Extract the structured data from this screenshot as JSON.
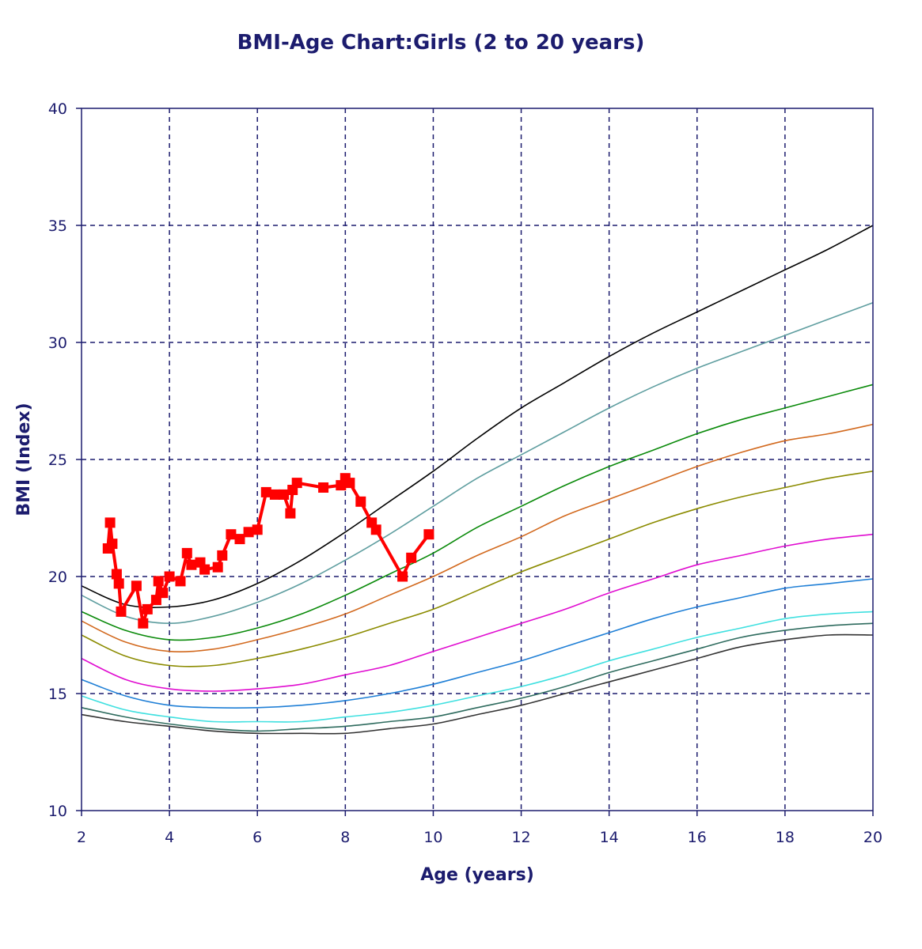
{
  "chart_data": {
    "type": "line",
    "title": "BMI-Age Chart:Girls (2 to 20 years)",
    "xlabel": "Age (years)",
    "ylabel": "BMI (Index)",
    "xlim": [
      2,
      20
    ],
    "ylim": [
      10,
      40
    ],
    "xticks": [
      "2",
      "4",
      "6",
      "8",
      "10",
      "12",
      "14",
      "16",
      "18",
      "20"
    ],
    "yticks": [
      "10",
      "15",
      "20",
      "25",
      "30",
      "35",
      "40"
    ],
    "grid": true,
    "x": [
      2,
      3,
      4,
      5,
      6,
      7,
      8,
      9,
      10,
      11,
      12,
      13,
      14,
      15,
      16,
      17,
      18,
      19,
      20
    ],
    "series": [
      {
        "color": "#000000",
        "values": [
          19.6,
          18.8,
          18.7,
          19.0,
          19.7,
          20.7,
          21.9,
          23.2,
          24.5,
          25.9,
          27.2,
          28.3,
          29.4,
          30.4,
          31.3,
          32.2,
          33.1,
          34.0,
          35.0
        ]
      },
      {
        "color": "#5f9ea0",
        "values": [
          19.2,
          18.3,
          18.0,
          18.3,
          18.9,
          19.7,
          20.7,
          21.8,
          23.0,
          24.2,
          25.2,
          26.2,
          27.2,
          28.1,
          28.9,
          29.6,
          30.3,
          31.0,
          31.7
        ]
      },
      {
        "color": "#0a8a0a",
        "values": [
          18.5,
          17.7,
          17.3,
          17.4,
          17.8,
          18.4,
          19.2,
          20.1,
          21.0,
          22.1,
          23.0,
          23.9,
          24.7,
          25.4,
          26.1,
          26.7,
          27.2,
          27.7,
          28.2
        ]
      },
      {
        "color": "#d2691e",
        "values": [
          18.1,
          17.2,
          16.8,
          16.9,
          17.3,
          17.8,
          18.4,
          19.2,
          20.0,
          20.9,
          21.7,
          22.6,
          23.3,
          24.0,
          24.7,
          25.3,
          25.8,
          26.1,
          26.5
        ]
      },
      {
        "color": "#8b8b00",
        "values": [
          17.5,
          16.6,
          16.2,
          16.2,
          16.5,
          16.9,
          17.4,
          18.0,
          18.6,
          19.4,
          20.2,
          20.9,
          21.6,
          22.3,
          22.9,
          23.4,
          23.8,
          24.2,
          24.5
        ]
      },
      {
        "color": "#e00cd0",
        "values": [
          16.5,
          15.6,
          15.2,
          15.1,
          15.2,
          15.4,
          15.8,
          16.2,
          16.8,
          17.4,
          18.0,
          18.6,
          19.3,
          19.9,
          20.5,
          20.9,
          21.3,
          21.6,
          21.8
        ]
      },
      {
        "color": "#1f7fd6",
        "values": [
          15.6,
          14.9,
          14.5,
          14.4,
          14.4,
          14.5,
          14.7,
          15.0,
          15.4,
          15.9,
          16.4,
          17.0,
          17.6,
          18.2,
          18.7,
          19.1,
          19.5,
          19.7,
          19.9
        ]
      },
      {
        "color": "#40e0e0",
        "values": [
          14.9,
          14.3,
          14.0,
          13.8,
          13.8,
          13.8,
          14.0,
          14.2,
          14.5,
          14.9,
          15.3,
          15.8,
          16.4,
          16.9,
          17.4,
          17.8,
          18.2,
          18.4,
          18.5
        ]
      },
      {
        "color": "#2e6b5e",
        "values": [
          14.4,
          14.0,
          13.7,
          13.5,
          13.4,
          13.5,
          13.6,
          13.8,
          14.0,
          14.4,
          14.8,
          15.3,
          15.9,
          16.4,
          16.9,
          17.4,
          17.7,
          17.9,
          18.0
        ]
      },
      {
        "color": "#333333",
        "values": [
          14.1,
          13.8,
          13.6,
          13.4,
          13.3,
          13.3,
          13.3,
          13.5,
          13.7,
          14.1,
          14.5,
          15.0,
          15.5,
          16.0,
          16.5,
          17.0,
          17.3,
          17.5,
          17.5
        ]
      }
    ],
    "patient": {
      "color": "#ff0000",
      "points": [
        [
          2.6,
          21.2
        ],
        [
          2.65,
          22.3
        ],
        [
          2.7,
          21.4
        ],
        [
          2.8,
          20.1
        ],
        [
          2.85,
          19.7
        ],
        [
          2.9,
          18.5
        ],
        [
          3.25,
          19.6
        ],
        [
          3.4,
          18.0
        ],
        [
          3.5,
          18.6
        ],
        [
          3.7,
          19.0
        ],
        [
          3.75,
          19.8
        ],
        [
          3.85,
          19.3
        ],
        [
          4.0,
          20.0
        ],
        [
          4.25,
          19.8
        ],
        [
          4.4,
          21.0
        ],
        [
          4.5,
          20.5
        ],
        [
          4.7,
          20.6
        ],
        [
          4.8,
          20.3
        ],
        [
          5.1,
          20.4
        ],
        [
          5.2,
          20.9
        ],
        [
          5.4,
          21.8
        ],
        [
          5.6,
          21.6
        ],
        [
          5.8,
          21.9
        ],
        [
          6.0,
          22.0
        ],
        [
          6.2,
          23.6
        ],
        [
          6.4,
          23.5
        ],
        [
          6.6,
          23.5
        ],
        [
          6.75,
          22.7
        ],
        [
          6.8,
          23.7
        ],
        [
          6.9,
          24.0
        ],
        [
          7.5,
          23.8
        ],
        [
          7.9,
          23.9
        ],
        [
          8.0,
          24.2
        ],
        [
          8.1,
          24.0
        ],
        [
          8.35,
          23.2
        ],
        [
          8.6,
          22.3
        ],
        [
          8.7,
          22.0
        ],
        [
          9.3,
          20.0
        ],
        [
          9.5,
          20.8
        ],
        [
          9.9,
          21.8
        ]
      ]
    }
  }
}
